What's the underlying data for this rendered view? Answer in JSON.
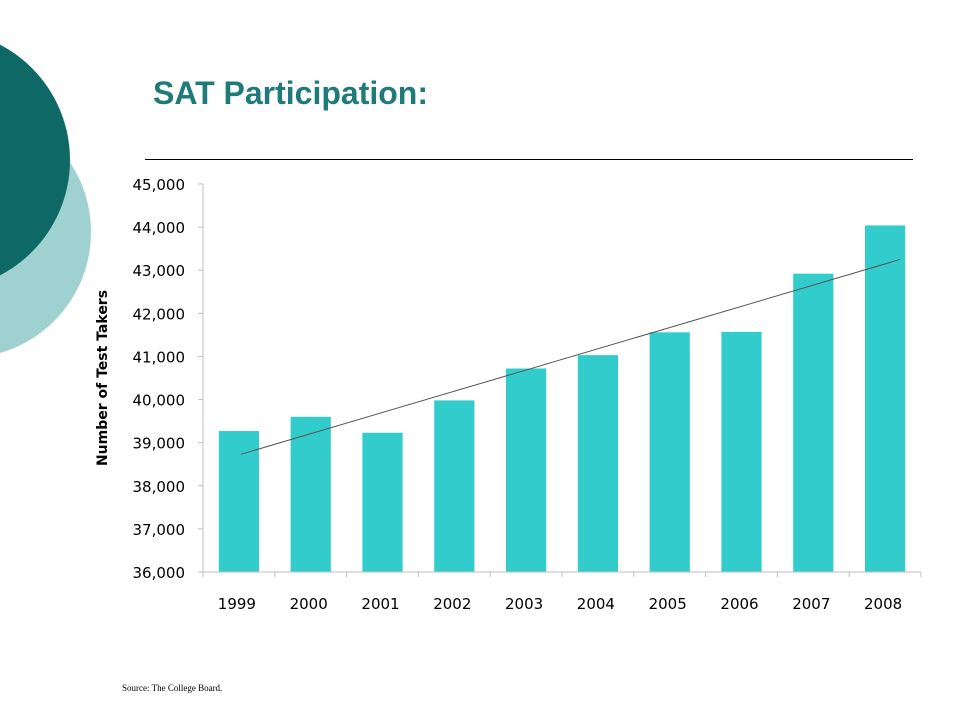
{
  "slide": {
    "title": "SAT Participation:",
    "source": "Source:  The College Board."
  },
  "colors": {
    "bar": "#33cccc",
    "title": "#1f7a7a",
    "decor_dark": "#0e6865",
    "decor_light": "#9fd1d1",
    "trend": "#555555"
  },
  "chart_data": {
    "type": "bar",
    "categories": [
      "1999",
      "2000",
      "2001",
      "2002",
      "2003",
      "2004",
      "2005",
      "2006",
      "2007",
      "2008"
    ],
    "values": [
      39270,
      39600,
      39230,
      39980,
      40720,
      41030,
      41560,
      41570,
      42920,
      44040
    ],
    "ylabel": "Number of Test Takers",
    "xlabel": "",
    "ylim": [
      36000,
      45000
    ],
    "yticks": [
      36000,
      37000,
      38000,
      39000,
      40000,
      41000,
      42000,
      43000,
      44000,
      45000
    ],
    "ytick_labels": [
      "36,000",
      "37,000",
      "38,000",
      "39,000",
      "40,000",
      "41,000",
      "42,000",
      "43,000",
      "44,000",
      "45,000"
    ],
    "trendline": {
      "type": "linear",
      "start": 38730,
      "end": 43250
    },
    "grid": false,
    "legend": "none"
  }
}
